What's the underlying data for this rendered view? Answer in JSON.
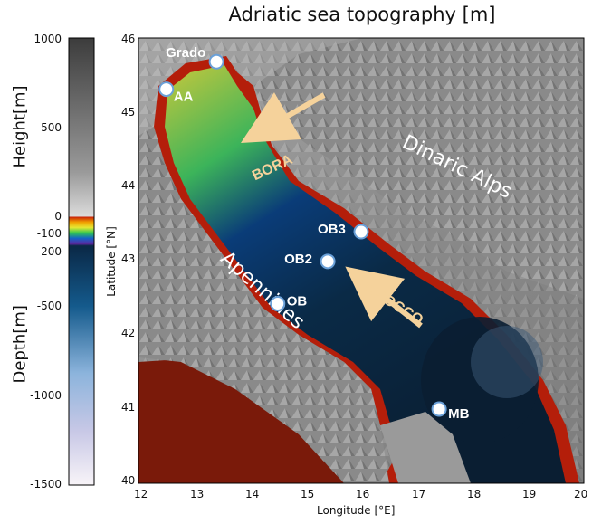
{
  "title": "Adriatic sea topography [m]",
  "colorbar": {
    "height_label": "Height[m]",
    "depth_label": "Depth[m]",
    "ticks": [
      {
        "label": "1000",
        "value": 1000
      },
      {
        "label": "500",
        "value": 500
      },
      {
        "label": "0",
        "value": 0
      },
      {
        "label": "-100",
        "value": -100
      },
      {
        "label": "-200",
        "value": -200
      },
      {
        "label": "-500",
        "value": -500
      },
      {
        "label": "-1000",
        "value": -1000
      },
      {
        "label": "-1500",
        "value": -1500
      }
    ]
  },
  "axes": {
    "xlabel": "Longitude [°E]",
    "ylabel": "Latitude [°N]",
    "xlim": [
      12,
      20
    ],
    "ylim": [
      40,
      46
    ],
    "xticks": [
      "12",
      "13",
      "14",
      "15",
      "16",
      "17",
      "18",
      "19",
      "20"
    ],
    "yticks": [
      "40",
      "41",
      "42",
      "43",
      "44",
      "45",
      "46"
    ]
  },
  "stations": [
    {
      "name": "Grado",
      "lon": 13.4,
      "lat": 45.68
    },
    {
      "name": "AA",
      "lon": 12.5,
      "lat": 45.31
    },
    {
      "name": "OB3",
      "lon": 16.0,
      "lat": 43.39
    },
    {
      "name": "OB2",
      "lon": 15.4,
      "lat": 42.99
    },
    {
      "name": "OB",
      "lon": 14.5,
      "lat": 42.42
    },
    {
      "name": "MB",
      "lon": 17.4,
      "lat": 41.0
    }
  ],
  "regions": {
    "dinaric": "Dinaric Alps",
    "apennines": "Apennines"
  },
  "winds": {
    "bora": "BORA",
    "scirocco": "SCIROCCO"
  },
  "colors": {
    "land_light": "#d8d8d8",
    "land_dark": "#5a5a5a",
    "shelf_red": "#b41e0a",
    "shelf_yellow": "#c8c83c",
    "mid_green": "#3cb45a",
    "deep_blue": "#0a3c64",
    "abyss": "#0a1e32",
    "arrow": "#f5d29b",
    "station_stroke": "#6aa0d8"
  }
}
